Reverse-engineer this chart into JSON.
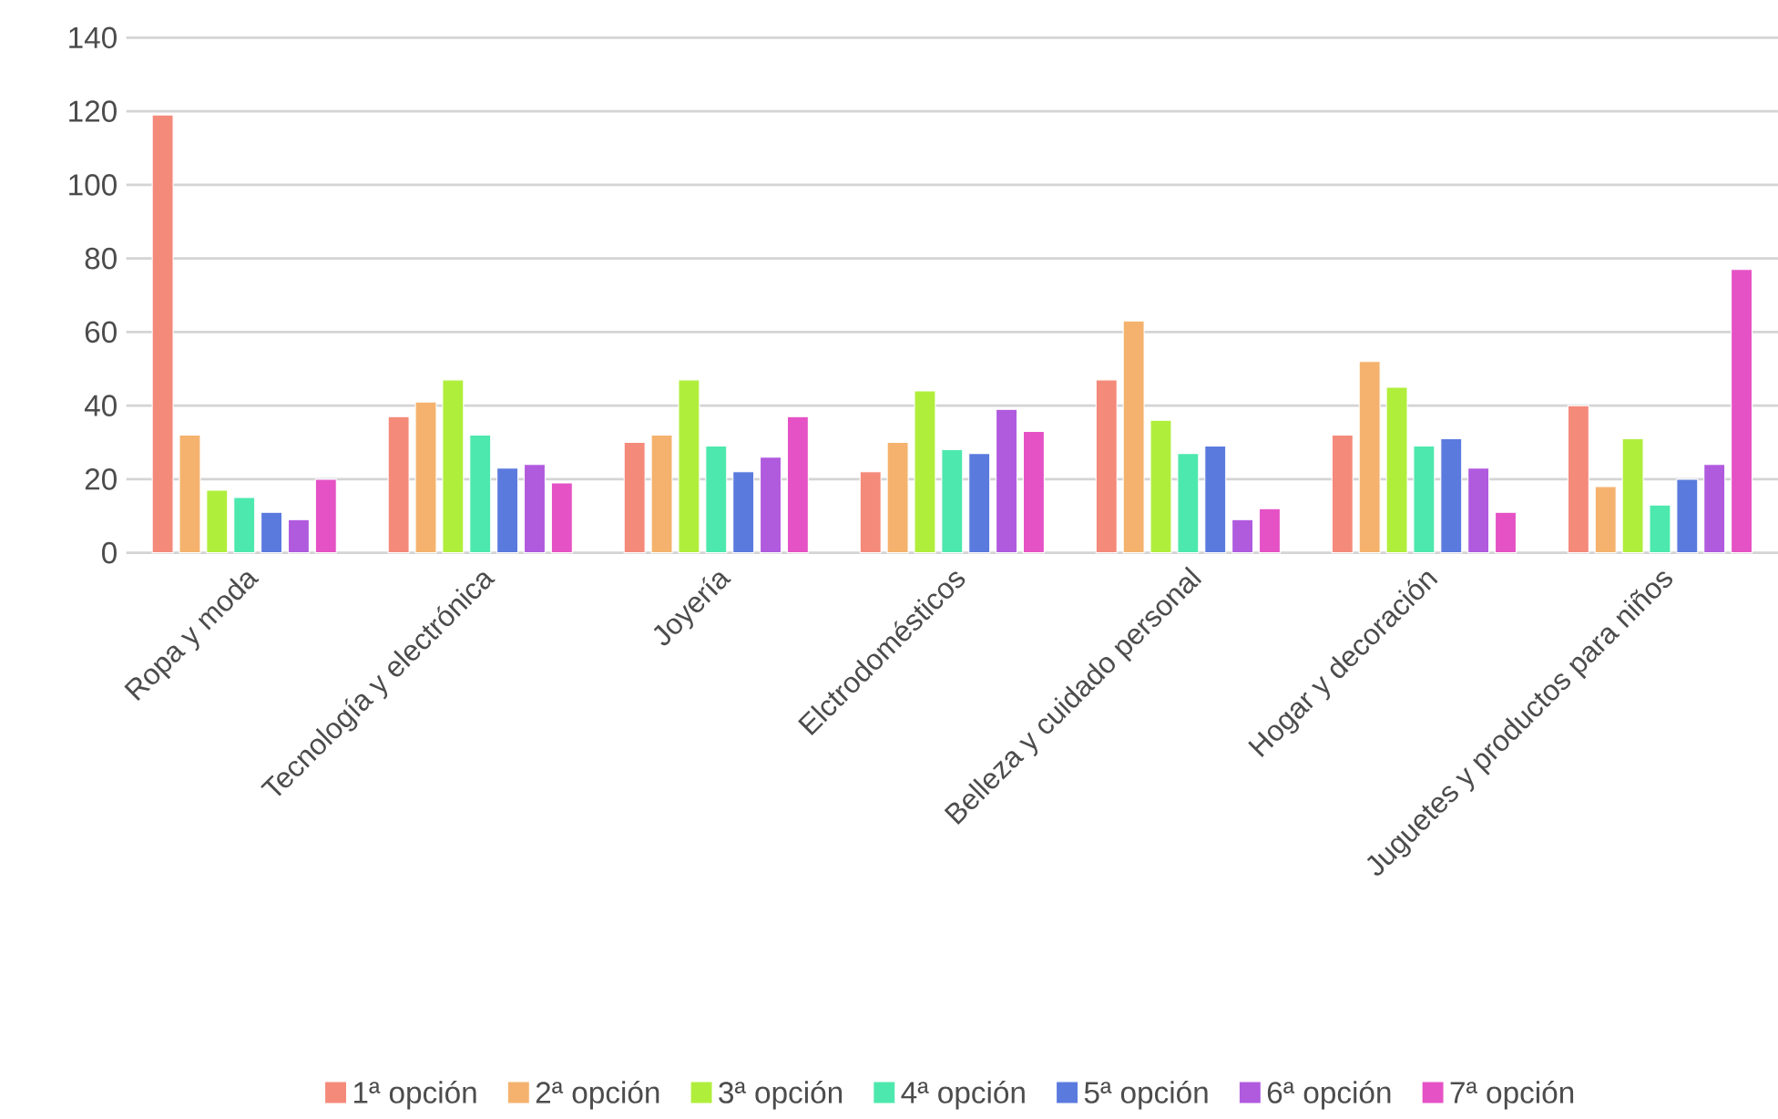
{
  "chart_data": {
    "type": "bar",
    "categories": [
      "Ropa y moda",
      "Tecnología y electrónica",
      "Joyería",
      "Elctrodomésticos",
      "Belleza y cuidado personal",
      "Hogar y decoración",
      "Juguetes y productos para niños"
    ],
    "series": [
      {
        "name": "1ª opción",
        "color": "#f48a7a",
        "values": [
          119,
          37,
          30,
          22,
          47,
          32,
          40
        ]
      },
      {
        "name": "2ª opción",
        "color": "#f5b26e",
        "values": [
          32,
          41,
          32,
          30,
          63,
          52,
          18
        ]
      },
      {
        "name": "3ª opción",
        "color": "#b0ee3c",
        "values": [
          17,
          47,
          47,
          44,
          36,
          45,
          31
        ]
      },
      {
        "name": "4ª opción",
        "color": "#4de8ad",
        "values": [
          15,
          32,
          29,
          28,
          27,
          29,
          13
        ]
      },
      {
        "name": "5ª opción",
        "color": "#5a7ade",
        "values": [
          11,
          23,
          22,
          27,
          29,
          31,
          20
        ]
      },
      {
        "name": "6ª opción",
        "color": "#b05ade",
        "values": [
          9,
          24,
          26,
          39,
          9,
          23,
          24
        ]
      },
      {
        "name": "7ª opción",
        "color": "#e552c5",
        "values": [
          20,
          19,
          37,
          33,
          12,
          11,
          77
        ]
      }
    ],
    "ylim": [
      0,
      140
    ],
    "yticks": [
      0,
      20,
      40,
      60,
      80,
      100,
      120,
      140
    ],
    "grid": "y",
    "legend": "bottom"
  }
}
